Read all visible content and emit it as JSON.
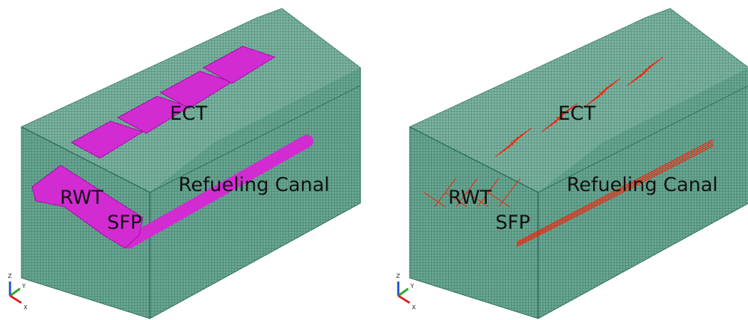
{
  "panels": [
    {
      "labels": {
        "ect": "ECT",
        "rwt": "RWT",
        "sfp": "SFP",
        "canal": "Refueling Canal"
      },
      "axes": {
        "z": "Z",
        "y": "Y",
        "x": "X"
      }
    },
    {
      "labels": {
        "ect": "ECT",
        "rwt": "RWT",
        "sfp": "SFP",
        "canal": "Refueling Canal"
      },
      "axes": {
        "z": "Z",
        "y": "Y",
        "x": "X"
      }
    }
  ]
}
